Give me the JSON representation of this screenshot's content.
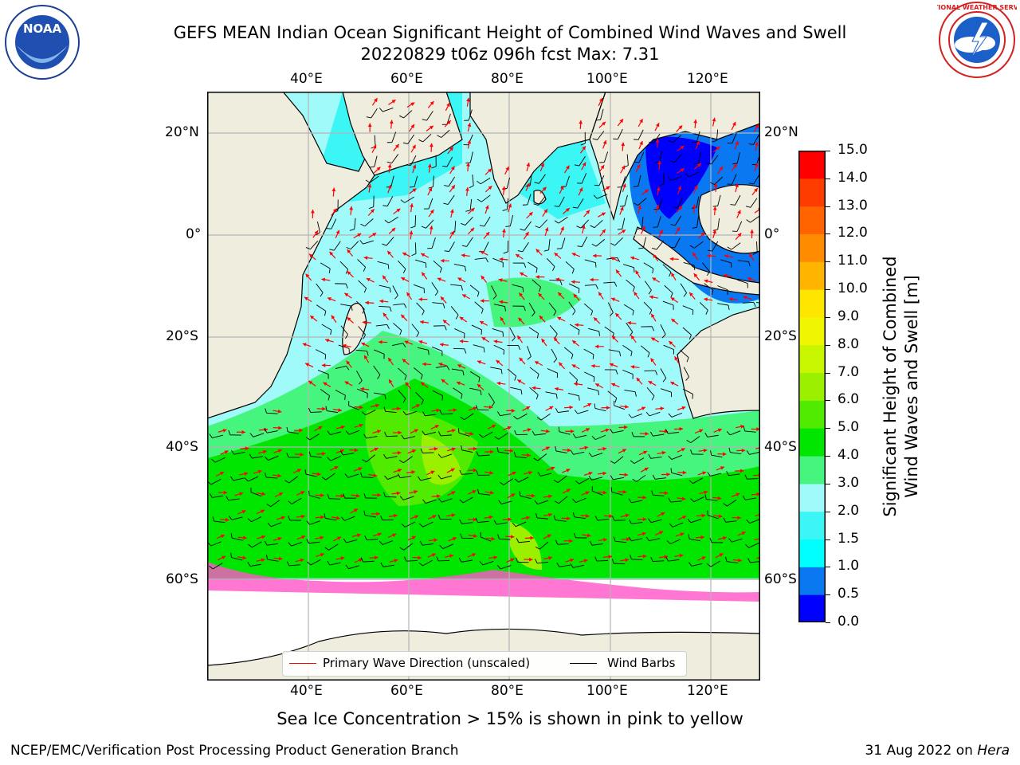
{
  "header": {
    "title": "GEFS MEAN Indian Ocean Significant Height of Combined Wind Waves and Swell",
    "subtitle": "20220829 t06z 096h fcst   Max: 7.31"
  },
  "logos": {
    "noaa_text": "NOAA",
    "noaa_ring": "NATIONAL OCEANIC AND ATMOSPHERIC ADMINISTRATION · U.S. DEPARTMENT OF COMMERCE",
    "nws_ring": "NATIONAL WEATHER SERVICE"
  },
  "map": {
    "top_lon_labels": [
      "40°E",
      "60°E",
      "80°E",
      "100°E",
      "120°E"
    ],
    "bottom_lon_labels": [
      "40°E",
      "60°E",
      "80°E",
      "100°E",
      "120°E"
    ],
    "left_lat_labels": [
      "20°N",
      "0°",
      "20°S",
      "40°S",
      "60°S"
    ],
    "right_lat_labels": [
      "20°N",
      "0°",
      "20°S",
      "40°S",
      "60°S"
    ],
    "legend": {
      "wave_label": "Primary Wave Direction (unscaled)",
      "wave_color": "#ff0000",
      "wind_label": "Wind Barbs",
      "wind_color": "#000000"
    },
    "colors": {
      "land": "#efedde",
      "ice_free_south": "#ffffff"
    }
  },
  "colorbar": {
    "label_line1": "Significant Height of Combined",
    "label_line2": "Wind Waves and Swell [m]",
    "ticks": [
      "15.0",
      "14.0",
      "13.0",
      "12.0",
      "11.0",
      "10.0",
      "9.0",
      "8.0",
      "7.0",
      "6.0",
      "5.0",
      "4.0",
      "3.0",
      "2.0",
      "1.5",
      "1.0",
      "0.5",
      "0.0"
    ],
    "colors_bottom_to_top": [
      "#0000ff",
      "#0a78f0",
      "#00ffff",
      "#3cf5f5",
      "#a0fafa",
      "#46f57d",
      "#00e600",
      "#50eb00",
      "#9bf000",
      "#c8f500",
      "#f0f500",
      "#ffe600",
      "#ffb400",
      "#ff8c00",
      "#ff6400",
      "#ff3c00",
      "#ff0000"
    ]
  },
  "footer": {
    "note": "Sea Ice Concentration > 15% is shown in pink to yellow",
    "left": "NCEP/EMC/Verification Post Processing Product Generation Branch",
    "right_date": "31 Aug 2022 on",
    "right_host": "Hera"
  }
}
